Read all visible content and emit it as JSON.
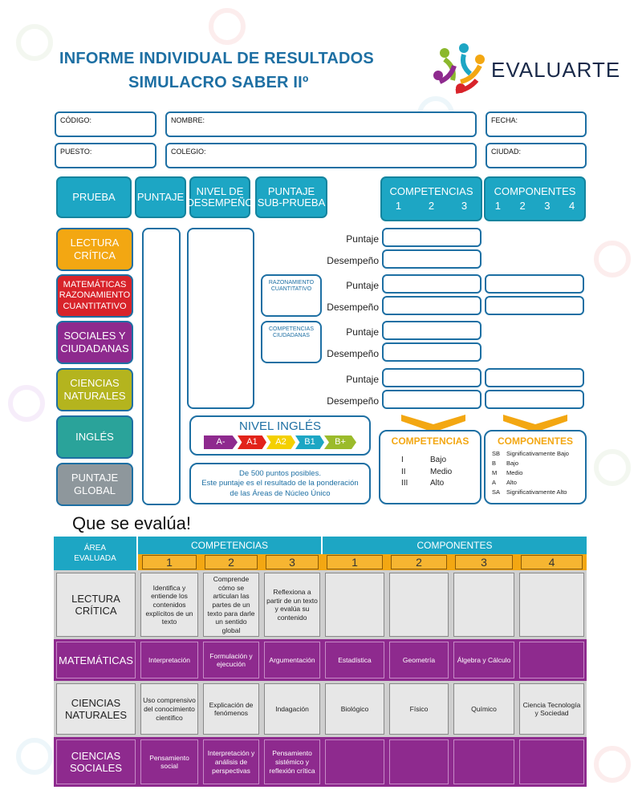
{
  "header": {
    "title_line1": "INFORME INDIVIDUAL DE RESULTADOS",
    "title_line2": "SIMULACRO SABER IIº",
    "brand": "EVALUARTE"
  },
  "fields": {
    "codigo": "CÓDIGO:",
    "nombre": "NOMBRE:",
    "fecha": "FECHA:",
    "puesto": "PUESTO:",
    "colegio": "COLEGIO:",
    "ciudad": "CIUDAD:"
  },
  "col_headers": {
    "prueba": "PRUEBA",
    "puntaje": "PUNTAJE",
    "nivel_1": "NIVEL DE",
    "nivel_2": "DESEMPEÑO",
    "sub_1": "PUNTAJE",
    "sub_2": "SUB-PRUEBA",
    "competencias": "COMPETENCIAS",
    "componentes": "COMPONENTES",
    "comp_nums": [
      "1",
      "2",
      "3"
    ],
    "compo_nums": [
      "1",
      "2",
      "3",
      "4"
    ]
  },
  "areas": {
    "lectura_1": "LECTURA",
    "lectura_2": "CRÍTICA",
    "mat_1": "MATEMÁTICAS",
    "mat_2": "RAZONAMIENTO",
    "mat_3": "CUANTITATIVO",
    "soc_1": "SOCIALES Y",
    "soc_2": "CIUDADANAS",
    "cien_1": "CIENCIAS",
    "cien_2": "NATURALES",
    "ingles": "INGLÉS",
    "global_1": "PUNTAJE",
    "global_2": "GLOBAL"
  },
  "sub_boxes": {
    "razonamiento_1": "RAZONAMIENTO",
    "razonamiento_2": "CUANTITATIVO",
    "competencias_1": "COMPETENCIAS",
    "competencias_2": "CIUDADANAS"
  },
  "row_labels": {
    "puntaje": "Puntaje",
    "desempeno": "Desempeño"
  },
  "nivel_ingles": {
    "title": "NIVEL INGLÉS",
    "levels": [
      "A-",
      "A1",
      "A2",
      "B1",
      "B+"
    ],
    "colors": [
      "#8e2a8e",
      "#e2231a",
      "#f4d000",
      "#1da6c4",
      "#9bbb2b"
    ]
  },
  "nota": {
    "line1": "De 500 puntos posibles.",
    "line2": "Este puntaje es el resultado de la ponderación",
    "line3": "de las Áreas de Núcleo Único"
  },
  "legend_competencias": {
    "title": "COMPETENCIAS",
    "items": [
      {
        "k": "I",
        "v": "Bajo"
      },
      {
        "k": "II",
        "v": "Medio"
      },
      {
        "k": "III",
        "v": "Alto"
      }
    ]
  },
  "legend_componentes": {
    "title": "COMPONENTES",
    "items": [
      {
        "k": "SB",
        "v": "Significativamente Bajo"
      },
      {
        "k": "B",
        "v": "Bajo"
      },
      {
        "k": "M",
        "v": "Medio"
      },
      {
        "k": "A",
        "v": "Alto"
      },
      {
        "k": "SA",
        "v": "Significativamente Alto"
      }
    ]
  },
  "que_se_evalua": {
    "heading": "Que se evalúa!",
    "area_header_1": "ÁREA",
    "area_header_2": "EVALUADA",
    "competencias": "COMPETENCIAS",
    "componentes": "COMPONENTES",
    "nums": [
      "1",
      "2",
      "3",
      "1",
      "2",
      "3",
      "4"
    ],
    "rows": [
      {
        "area": [
          "LECTURA",
          "CRÍTICA"
        ],
        "cells": [
          "Identifica y entiende los contenidos explícitos de un texto",
          "Comprende cómo se articulan las partes de un texto para darle un sentido global",
          "Reflexiona a partir de un texto y evalúa su contenido",
          "",
          "",
          "",
          ""
        ]
      },
      {
        "area": [
          "MATEMÁTICAS",
          ""
        ],
        "cells": [
          "Interpretación",
          "Formulación y ejecución",
          "Argumentación",
          "Estadística",
          "Geometría",
          "Álgebra y Cálculo",
          ""
        ]
      },
      {
        "area": [
          "CIENCIAS",
          "NATURALES"
        ],
        "cells": [
          "Uso comprensivo del conocimiento científico",
          "Explicación de fenómenos",
          "Indagación",
          "Biológico",
          "Físico",
          "Químico",
          "Ciencia Tecnología y Sociedad"
        ]
      },
      {
        "area": [
          "CIENCIAS",
          "SOCIALES"
        ],
        "cells": [
          "Pensamiento social",
          "Interpretación y análisis de perspectivas",
          "Pensamiento sistémico y reflexión crítica",
          "",
          "",
          "",
          ""
        ]
      }
    ]
  },
  "colors": {
    "primary_blue": "#1d6fa3",
    "cyan": "#1da6c4",
    "orange": "#f3a712",
    "purple": "#8e2a8e",
    "lectura": "#f3a712",
    "matematicas": "#d8232a",
    "sociales": "#8e2a8e",
    "ciencias": "#b4b41e",
    "ingles": "#2aa39a",
    "global": "#8e979c"
  }
}
